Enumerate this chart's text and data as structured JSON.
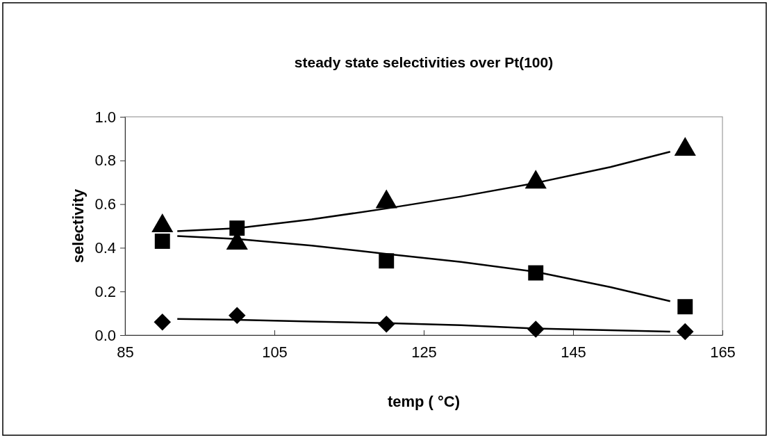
{
  "chart_data": {
    "type": "scatter",
    "title": "steady state selectivities over Pt(100)",
    "xlabel": "temp ( °C)",
    "ylabel": "selectivity",
    "xlim": [
      85,
      165
    ],
    "xticks": [
      85,
      105,
      125,
      145,
      165
    ],
    "ylim": [
      0,
      1
    ],
    "yticks": [
      {
        "value": 0,
        "label": "0.0"
      },
      {
        "value": 0.2,
        "label": "0.2"
      },
      {
        "value": 0.4,
        "label": "0.4"
      },
      {
        "value": 0.6,
        "label": "0.6"
      },
      {
        "value": 0.8,
        "label": "0.8"
      },
      {
        "value": 1,
        "label": "1.0"
      }
    ],
    "grid": false,
    "series": [
      {
        "marker": "triangle",
        "color": "#000000",
        "x": [
          90,
          100,
          120,
          140,
          160
        ],
        "values": [
          0.5,
          0.42,
          0.61,
          0.7,
          0.85
        ]
      },
      {
        "marker": "square",
        "color": "#000000",
        "x": [
          90,
          100,
          120,
          140,
          160
        ],
        "values": [
          0.43,
          0.49,
          0.34,
          0.285,
          0.13
        ]
      },
      {
        "marker": "diamond",
        "color": "#000000",
        "x": [
          90,
          100,
          120,
          140,
          160
        ],
        "values": [
          0.06,
          0.09,
          0.05,
          0.027,
          0.016
        ]
      },
      {
        "type": "line",
        "marker": "none",
        "color": "#000000",
        "x": [
          92,
          100,
          110,
          120,
          130,
          140,
          150,
          158
        ],
        "values": [
          0.476,
          0.49,
          0.53,
          0.58,
          0.635,
          0.697,
          0.77,
          0.84
        ]
      },
      {
        "type": "line",
        "marker": "none",
        "color": "#000000",
        "x": [
          92,
          100,
          110,
          120,
          130,
          140,
          150,
          158
        ],
        "values": [
          0.454,
          0.44,
          0.41,
          0.372,
          0.335,
          0.29,
          0.22,
          0.155
        ]
      },
      {
        "type": "line",
        "marker": "none",
        "color": "#000000",
        "x": [
          92,
          100,
          110,
          120,
          130,
          140,
          150,
          158
        ],
        "values": [
          0.074,
          0.07,
          0.062,
          0.055,
          0.045,
          0.03,
          0.022,
          0.016
        ]
      }
    ]
  }
}
